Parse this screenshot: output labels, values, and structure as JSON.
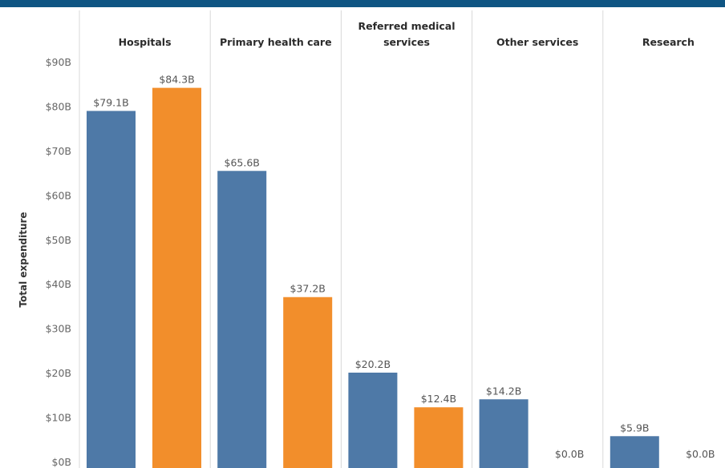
{
  "chart_data": {
    "type": "bar",
    "ylabel": "Total expenditure",
    "ylim": [
      0,
      90
    ],
    "y_ticks": [
      "$0B",
      "$10B",
      "$20B",
      "$30B",
      "$40B",
      "$50B",
      "$60B",
      "$70B",
      "$80B",
      "$90B"
    ],
    "categories": [
      {
        "lines": [
          "Hospitals"
        ]
      },
      {
        "lines": [
          "Primary health care"
        ]
      },
      {
        "lines": [
          "Referred medical",
          "services"
        ]
      },
      {
        "lines": [
          "Other services"
        ]
      },
      {
        "lines": [
          "Research"
        ]
      }
    ],
    "series": [
      {
        "color": "#4e79a7",
        "values": [
          79.1,
          65.6,
          20.2,
          14.2,
          5.9
        ],
        "labels": [
          "$79.1B",
          "$65.6B",
          "$20.2B",
          "$14.2B",
          "$5.9B"
        ]
      },
      {
        "color": "#f28e2b",
        "values": [
          84.3,
          37.2,
          12.4,
          0.0,
          0.0
        ],
        "labels": [
          "$84.3B",
          "$37.2B",
          "$12.4B",
          "$0.0B",
          "$0.0B"
        ]
      }
    ],
    "grid": false,
    "legend": "none"
  }
}
